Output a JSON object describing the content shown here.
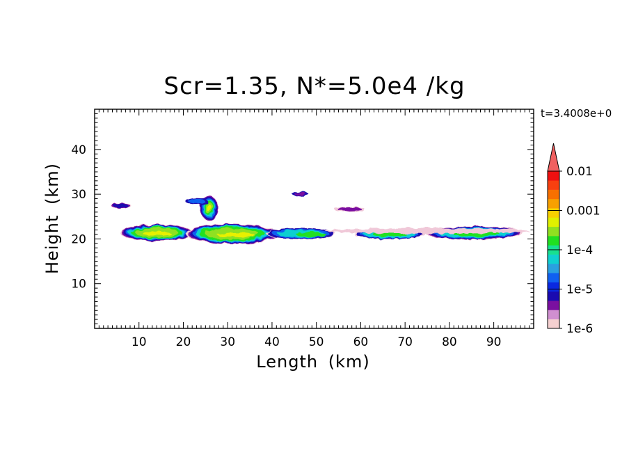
{
  "chart_data": {
    "type": "heatmap",
    "title": "Scr=1.35, N*=5.0e4 /kg",
    "time_label": "t=3.4008e+0",
    "xlabel": "Length  (km)",
    "ylabel": "Height  (km)",
    "xlim": [
      0,
      99
    ],
    "ylim": [
      0,
      49
    ],
    "x_ticks": [
      10,
      20,
      30,
      40,
      50,
      60,
      70,
      80,
      90
    ],
    "y_ticks": [
      10,
      20,
      30,
      40
    ],
    "colorbar": {
      "scale": "log",
      "range": [
        1e-06,
        0.01
      ],
      "tick_labels": [
        "0.01",
        "0.001",
        "1e-4",
        "1e-5",
        "1e-6"
      ],
      "tick_values": [
        0.01,
        0.001,
        0.0001,
        1e-05,
        1e-06
      ],
      "extend": "max",
      "colors": [
        "#f5d0d0",
        "#d08fd0",
        "#7a10a0",
        "#1a0ab0",
        "#0a28e0",
        "#1060f0",
        "#2aa0e0",
        "#10d0d0",
        "#18e090",
        "#20e020",
        "#90e020",
        "#e0f000",
        "#f8d000",
        "#f8a000",
        "#f87000",
        "#f84010",
        "#f01010",
        "#f06060"
      ]
    },
    "contour_regions": [
      {
        "x": [
          7,
          22
        ],
        "y": [
          19.5,
          23
        ],
        "level": "1e-4 to 2e-3"
      },
      {
        "x": [
          21,
          40
        ],
        "y": [
          19,
          23
        ],
        "level": "1e-4 to 1e-3"
      },
      {
        "x": [
          24,
          28
        ],
        "y": [
          24.5,
          29.5
        ],
        "level": "1e-4 to 2e-3"
      },
      {
        "x": [
          4,
          8
        ],
        "y": [
          27,
          28
        ],
        "level": "1e-6 to 1e-5"
      },
      {
        "x": [
          45,
          48
        ],
        "y": [
          29.5,
          30.5
        ],
        "level": "1e-6 to 1e-5"
      },
      {
        "x": [
          55,
          60
        ],
        "y": [
          26,
          27
        ],
        "level": "1e-6 to 1e-5"
      },
      {
        "x": [
          40,
          53
        ],
        "y": [
          20,
          22
        ],
        "level": "1e-5 to 1e-4"
      },
      {
        "x": [
          60,
          74
        ],
        "y": [
          20,
          22
        ],
        "level": "1e-5 to 1e-4"
      },
      {
        "x": [
          76,
          96
        ],
        "y": [
          20,
          22.5
        ],
        "level": "1e-5 to 1e-4"
      }
    ]
  }
}
